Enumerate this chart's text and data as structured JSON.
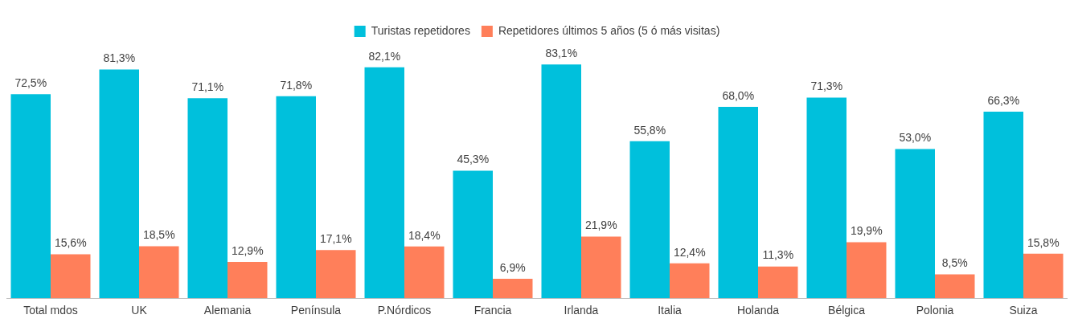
{
  "chart_data": {
    "type": "bar",
    "categories": [
      "Total mdos",
      "UK",
      "Alemania",
      "Península",
      "P.Nórdicos",
      "Francia",
      "Irlanda",
      "Italia",
      "Holanda",
      "Bélgica",
      "Polonia",
      "Suiza"
    ],
    "series": [
      {
        "name": "Turistas repetidores",
        "color": "#00c0dc",
        "values": [
          72.5,
          81.3,
          71.1,
          71.8,
          82.1,
          45.3,
          83.1,
          55.8,
          68.0,
          71.3,
          53.0,
          66.3
        ],
        "value_labels": [
          "72,5%",
          "81,3%",
          "71,1%",
          "71,8%",
          "82,1%",
          "45,3%",
          "83,1%",
          "55,8%",
          "68,0%",
          "71,3%",
          "53,0%",
          "66,3%"
        ]
      },
      {
        "name": "Repetidores últimos 5 años (5 ó más visitas)",
        "color": "#ff7f5a",
        "values": [
          15.6,
          18.5,
          12.9,
          17.1,
          18.4,
          6.9,
          21.9,
          12.4,
          11.3,
          19.9,
          8.5,
          15.8
        ],
        "value_labels": [
          "15,6%",
          "18,5%",
          "12,9%",
          "17,1%",
          "18,4%",
          "6,9%",
          "21,9%",
          "12,4%",
          "11,3%",
          "19,9%",
          "8,5%",
          "15,8%"
        ]
      }
    ],
    "legend": "top",
    "grid": false,
    "tick_labels": "x"
  }
}
